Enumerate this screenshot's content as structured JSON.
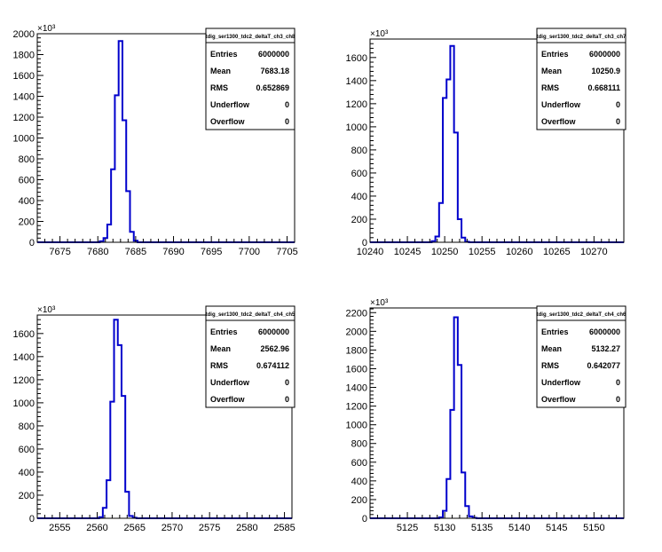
{
  "chart_data": [
    {
      "type": "histogram",
      "title": "tdig_ser1300_tdc2_deltaT_ch3_ch8",
      "y_exponent_label": "×10³",
      "xlim": [
        7672,
        7706
      ],
      "ylim": [
        0,
        2000
      ],
      "xticks": [
        7675,
        7680,
        7685,
        7690,
        7695,
        7700,
        7705
      ],
      "yticks": [
        0,
        200,
        400,
        600,
        800,
        1000,
        1200,
        1400,
        1600,
        1800,
        2000
      ],
      "bin_width": 0.5,
      "bins": [
        {
          "x": 7680.5,
          "y": 10
        },
        {
          "x": 7681.0,
          "y": 40
        },
        {
          "x": 7681.5,
          "y": 170
        },
        {
          "x": 7682.0,
          "y": 700
        },
        {
          "x": 7682.5,
          "y": 1410
        },
        {
          "x": 7683.0,
          "y": 1930
        },
        {
          "x": 7683.5,
          "y": 1170
        },
        {
          "x": 7684.0,
          "y": 490
        },
        {
          "x": 7684.5,
          "y": 100
        },
        {
          "x": 7685.0,
          "y": 15
        }
      ],
      "stats": [
        {
          "label": "Entries",
          "value": "6000000"
        },
        {
          "label": "Mean",
          "value": "7683.18"
        },
        {
          "label": "RMS",
          "value": "0.652869"
        },
        {
          "label": "Underflow",
          "value": "0"
        },
        {
          "label": "Overflow",
          "value": "0"
        }
      ],
      "line_color": "#0000cc"
    },
    {
      "type": "histogram",
      "title": "tdig_ser1300_tdc2_deltaT_ch3_ch7",
      "y_exponent_label": "×10³",
      "xlim": [
        10240,
        10274
      ],
      "ylim": [
        0,
        1760
      ],
      "xticks": [
        10240,
        10245,
        10250,
        10255,
        10260,
        10265,
        10270
      ],
      "yticks": [
        0,
        200,
        400,
        600,
        800,
        1000,
        1200,
        1400,
        1600
      ],
      "bin_width": 0.5,
      "bins": [
        {
          "x": 10248.5,
          "y": 10
        },
        {
          "x": 10249.0,
          "y": 50
        },
        {
          "x": 10249.5,
          "y": 340
        },
        {
          "x": 10250.0,
          "y": 1250
        },
        {
          "x": 10250.5,
          "y": 1410
        },
        {
          "x": 10251.0,
          "y": 1700
        },
        {
          "x": 10251.5,
          "y": 950
        },
        {
          "x": 10252.0,
          "y": 200
        },
        {
          "x": 10252.5,
          "y": 40
        },
        {
          "x": 10253.0,
          "y": 5
        }
      ],
      "stats": [
        {
          "label": "Entries",
          "value": "6000000"
        },
        {
          "label": "Mean",
          "value": "10250.9"
        },
        {
          "label": "RMS",
          "value": "0.668111"
        },
        {
          "label": "Underflow",
          "value": "0"
        },
        {
          "label": "Overflow",
          "value": "0"
        }
      ],
      "line_color": "#0000cc"
    },
    {
      "type": "histogram",
      "title": "tdig_ser1300_tdc2_deltaT_ch4_ch5",
      "y_exponent_label": "×10³",
      "xlim": [
        2552,
        2586
      ],
      "ylim": [
        0,
        1760
      ],
      "xticks": [
        2555,
        2560,
        2565,
        2570,
        2575,
        2580,
        2585
      ],
      "yticks": [
        0,
        200,
        400,
        600,
        800,
        1000,
        1200,
        1400,
        1600
      ],
      "bin_width": 0.5,
      "bins": [
        {
          "x": 2560.5,
          "y": 10
        },
        {
          "x": 2561.0,
          "y": 90
        },
        {
          "x": 2561.5,
          "y": 330
        },
        {
          "x": 2562.0,
          "y": 1010
        },
        {
          "x": 2562.5,
          "y": 1720
        },
        {
          "x": 2563.0,
          "y": 1500
        },
        {
          "x": 2563.5,
          "y": 1060
        },
        {
          "x": 2564.0,
          "y": 230
        },
        {
          "x": 2564.5,
          "y": 20
        },
        {
          "x": 2565.0,
          "y": 5
        }
      ],
      "stats": [
        {
          "label": "Entries",
          "value": "6000000"
        },
        {
          "label": "Mean",
          "value": "2562.96"
        },
        {
          "label": "RMS",
          "value": "0.674112"
        },
        {
          "label": "Underflow",
          "value": "0"
        },
        {
          "label": "Overflow",
          "value": "0"
        }
      ],
      "line_color": "#0000cc"
    },
    {
      "type": "histogram",
      "title": "tdig_ser1300_tdc2_deltaT_ch4_ch6",
      "y_exponent_label": "×10³",
      "xlim": [
        5120,
        5154
      ],
      "ylim": [
        0,
        2250
      ],
      "xticks": [
        5125,
        5130,
        5135,
        5140,
        5145,
        5150
      ],
      "yticks": [
        0,
        200,
        400,
        600,
        800,
        1000,
        1200,
        1400,
        1600,
        1800,
        2000,
        2200
      ],
      "bin_width": 0.5,
      "bins": [
        {
          "x": 5129.5,
          "y": 10
        },
        {
          "x": 5130.0,
          "y": 80
        },
        {
          "x": 5130.5,
          "y": 420
        },
        {
          "x": 5131.0,
          "y": 1160
        },
        {
          "x": 5131.5,
          "y": 2150
        },
        {
          "x": 5132.0,
          "y": 1640
        },
        {
          "x": 5132.5,
          "y": 490
        },
        {
          "x": 5133.0,
          "y": 130
        },
        {
          "x": 5133.5,
          "y": 20
        },
        {
          "x": 5134.0,
          "y": 5
        }
      ],
      "stats": [
        {
          "label": "Entries",
          "value": "6000000"
        },
        {
          "label": "Mean",
          "value": "5132.27"
        },
        {
          "label": "RMS",
          "value": "0.642077"
        },
        {
          "label": "Underflow",
          "value": "0"
        },
        {
          "label": "Overflow",
          "value": "0"
        }
      ],
      "line_color": "#0000cc"
    }
  ]
}
